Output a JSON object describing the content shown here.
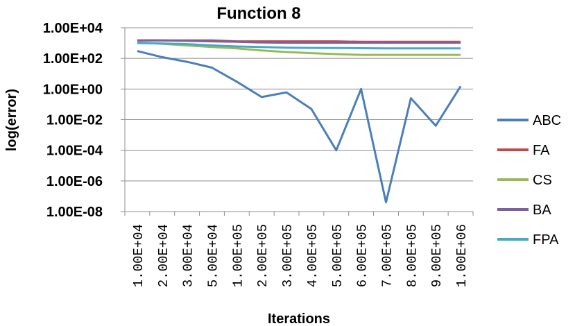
{
  "chart_data": {
    "type": "line",
    "title": "Function 8",
    "xlabel": "Iterations",
    "ylabel": "log(error)",
    "categories": [
      "1.00E+04",
      "2.00E+04",
      "3.00E+04",
      "5.00E+04",
      "1.00E+05",
      "2.00E+05",
      "3.00E+05",
      "4.00E+05",
      "5.00E+05",
      "6.00E+05",
      "7.00E+05",
      "8.00E+05",
      "9.00E+05",
      "1.00E+06"
    ],
    "y_scale": "log",
    "ylim": [
      1e-08,
      10000
    ],
    "yticks": [
      "1.00E+04",
      "1.00E+02",
      "1.00E+00",
      "1.00E-02",
      "1.00E-04",
      "1.00E-06",
      "1.00E-08"
    ],
    "grid": true,
    "legend_position": "right",
    "series": [
      {
        "name": "ABC",
        "color": "#4a7ebb",
        "values": [
          300,
          120,
          60,
          25,
          3,
          0.3,
          0.6,
          0.05,
          0.0001,
          1.0,
          4e-08,
          0.25,
          0.004,
          1.5
        ]
      },
      {
        "name": "FA",
        "color": "#be4b48",
        "values": [
          1500,
          1500,
          1500,
          1500,
          1300,
          1300,
          1300,
          1300,
          1300,
          1200,
          1200,
          1200,
          1200,
          1200
        ]
      },
      {
        "name": "CS",
        "color": "#98b954",
        "values": [
          1100,
          900,
          700,
          550,
          450,
          330,
          260,
          220,
          190,
          170,
          170,
          170,
          170,
          170
        ]
      },
      {
        "name": "BA",
        "color": "#7d60a0",
        "values": [
          1500,
          1500,
          1400,
          1300,
          1200,
          1100,
          1050,
          1050,
          1050,
          1050,
          1050,
          1050,
          1050,
          1050
        ]
      },
      {
        "name": "FPA",
        "color": "#46aac5",
        "values": [
          1000,
          950,
          850,
          700,
          600,
          550,
          500,
          480,
          470,
          460,
          450,
          450,
          450,
          450
        ]
      }
    ]
  }
}
